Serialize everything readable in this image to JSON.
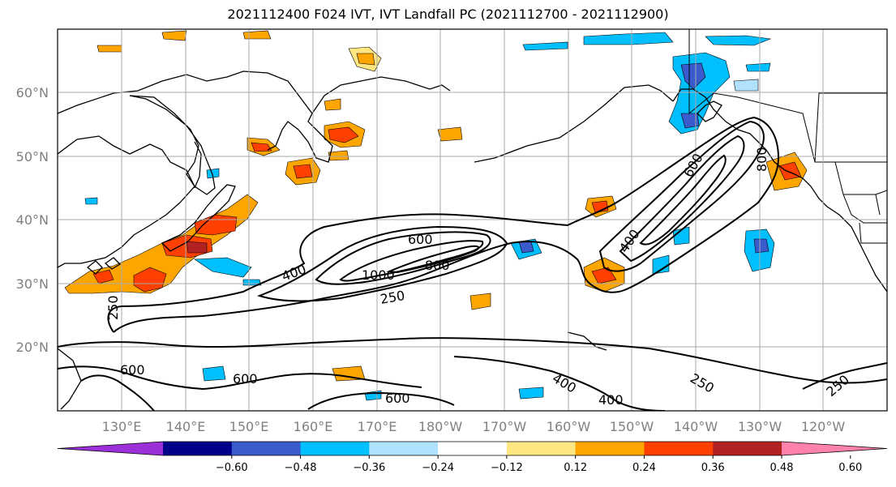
{
  "title": "2021112400 F024 IVT, IVT Landfall PC (2021112700 - 2021112900)",
  "lat_labels": [
    "60°N",
    "50°N",
    "40°N",
    "30°N",
    "20°N"
  ],
  "lon_labels": [
    "130°E",
    "140°E",
    "150°E",
    "160°E",
    "170°E",
    "180°W",
    "170°W",
    "160°W",
    "150°W",
    "140°W",
    "130°W",
    "120°W"
  ],
  "contour_labels": [
    "600",
    "1000",
    "800",
    "400",
    "250",
    "250",
    "600",
    "600",
    "600",
    "400",
    "400",
    "250",
    "250",
    "600",
    "400",
    "800"
  ],
  "colorbar": {
    "ticks": [
      "−0.60",
      "−0.48",
      "−0.36",
      "−0.24",
      "−0.12",
      "0.12",
      "0.24",
      "0.36",
      "0.48",
      "0.60"
    ],
    "colors": [
      "#9b30d9",
      "#00008b",
      "#3a5bcc",
      "#00bfff",
      "#b0e2ff",
      "#ffffff",
      "#ffe680",
      "#ffa500",
      "#ff4000",
      "#b22222",
      "#ff82ab"
    ]
  }
}
